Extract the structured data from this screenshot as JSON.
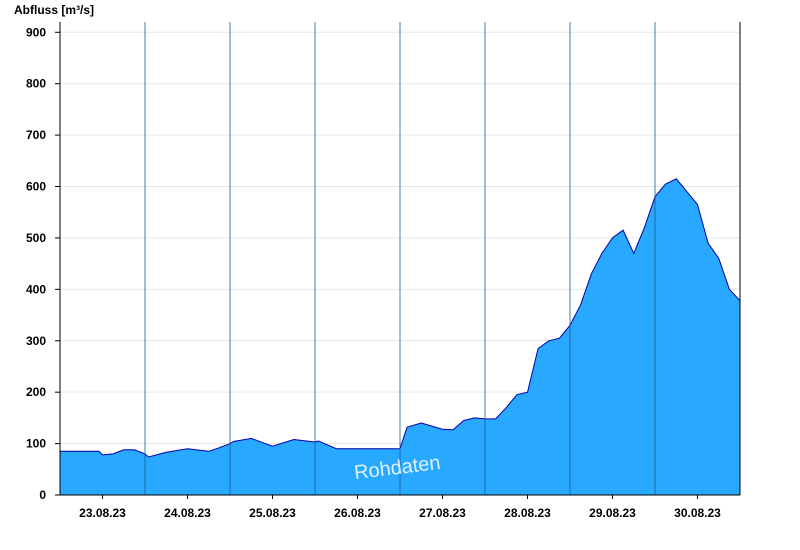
{
  "chart_data": {
    "type": "area",
    "title": "",
    "ylabel": "Abfluss [m³/s]",
    "xlabel": "",
    "ylim": [
      0,
      920
    ],
    "yticks": [
      0,
      100,
      200,
      300,
      400,
      500,
      600,
      700,
      800,
      900
    ],
    "xlim": [
      "2023-08-22T12:00",
      "2023-08-30T12:00"
    ],
    "day_ticks": [
      "2023-08-23",
      "2023-08-24",
      "2023-08-25",
      "2023-08-26",
      "2023-08-27",
      "2023-08-28",
      "2023-08-29",
      "2023-08-30"
    ],
    "day_tick_labels": [
      "23.08.23",
      "24.08.23",
      "25.08.23",
      "26.08.23",
      "27.08.23",
      "28.08.23",
      "29.08.23",
      "30.08.23"
    ],
    "day_boundaries": [
      "2023-08-23T12:00",
      "2023-08-24T12:00",
      "2023-08-25T12:00",
      "2023-08-26T12:00",
      "2023-08-27T12:00",
      "2023-08-28T12:00",
      "2023-08-29T12:00",
      "2023-08-30T12:00"
    ],
    "grid": "horizontal",
    "fill_color": "#29a8ff",
    "line_color": "#0000aa",
    "annotation": "Rohdaten",
    "series": [
      {
        "x": [
          "2023-08-22T12:00",
          "2023-08-22T23:00",
          "2023-08-23T00:00",
          "2023-08-23T03:00",
          "2023-08-23T06:00",
          "2023-08-23T09:00",
          "2023-08-23T12:00",
          "2023-08-23T13:00",
          "2023-08-23T18:00",
          "2023-08-24T00:00",
          "2023-08-24T06:00",
          "2023-08-24T09:00",
          "2023-08-24T12:00",
          "2023-08-24T13:00",
          "2023-08-24T18:00",
          "2023-08-25T00:00",
          "2023-08-25T06:00",
          "2023-08-25T12:00",
          "2023-08-25T13:00",
          "2023-08-25T18:00",
          "2023-08-26T00:00",
          "2023-08-26T06:00",
          "2023-08-26T12:00",
          "2023-08-26T14:00",
          "2023-08-26T18:00",
          "2023-08-27T00:00",
          "2023-08-27T03:00",
          "2023-08-27T06:00",
          "2023-08-27T09:00",
          "2023-08-27T12:00",
          "2023-08-27T15:00",
          "2023-08-27T18:00",
          "2023-08-27T21:00",
          "2023-08-28T00:00",
          "2023-08-28T03:00",
          "2023-08-28T06:00",
          "2023-08-28T09:00",
          "2023-08-28T12:00",
          "2023-08-28T15:00",
          "2023-08-28T18:00",
          "2023-08-28T21:00",
          "2023-08-29T00:00",
          "2023-08-29T03:00",
          "2023-08-29T06:00",
          "2023-08-29T09:00",
          "2023-08-29T12:00",
          "2023-08-29T15:00",
          "2023-08-29T18:00",
          "2023-08-29T21:00",
          "2023-08-30T00:00",
          "2023-08-30T03:00",
          "2023-08-30T06:00",
          "2023-08-30T09:00",
          "2023-08-30T12:00"
        ],
        "y": [
          85,
          85,
          78,
          80,
          88,
          88,
          80,
          74,
          83,
          90,
          85,
          92,
          100,
          104,
          110,
          95,
          108,
          103,
          105,
          90,
          90,
          90,
          90,
          132,
          140,
          128,
          127,
          145,
          150,
          148,
          148,
          170,
          195,
          200,
          285,
          300,
          305,
          330,
          370,
          430,
          470,
          500,
          515,
          470,
          520,
          580,
          605,
          615,
          590,
          565,
          490,
          460,
          400,
          378
        ]
      }
    ]
  }
}
